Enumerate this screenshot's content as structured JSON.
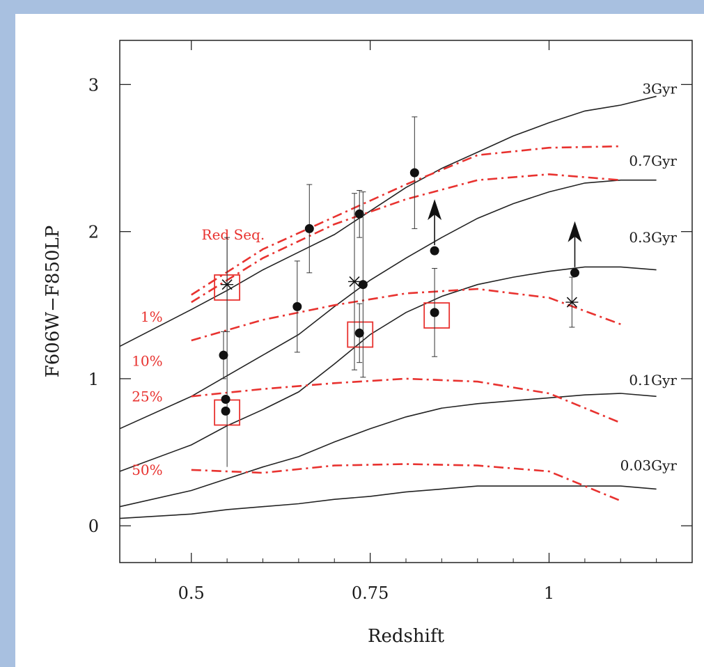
{
  "chart_data": {
    "type": "line",
    "title": "",
    "xlabel": "Redshift",
    "ylabel": "F606W−F850LP",
    "xlim": [
      0.4,
      1.2
    ],
    "ylim": [
      -0.25,
      3.3
    ],
    "xticks": [
      0.5,
      0.75,
      1
    ],
    "xtick_labels": [
      "0.5",
      "0.75",
      "1"
    ],
    "yticks": [
      0,
      1,
      2,
      3
    ],
    "ytick_labels": [
      "0",
      "1",
      "2",
      "3"
    ],
    "grid": false,
    "model_curves": [
      {
        "label": "3Gyr",
        "color": "#222222",
        "x": [
          0.4,
          0.5,
          0.55,
          0.6,
          0.65,
          0.7,
          0.75,
          0.8,
          0.85,
          0.9,
          0.95,
          1.0,
          1.05,
          1.1,
          1.15
        ],
        "y": [
          1.22,
          1.47,
          1.6,
          1.74,
          1.86,
          1.98,
          2.14,
          2.3,
          2.43,
          2.54,
          2.65,
          2.74,
          2.82,
          2.86,
          2.92
        ]
      },
      {
        "label": "0.7Gyr",
        "color": "#222222",
        "x": [
          0.4,
          0.5,
          0.55,
          0.6,
          0.65,
          0.7,
          0.75,
          0.8,
          0.85,
          0.9,
          0.95,
          1.0,
          1.05,
          1.1,
          1.15
        ],
        "y": [
          0.66,
          0.88,
          1.02,
          1.16,
          1.3,
          1.49,
          1.67,
          1.82,
          1.96,
          2.09,
          2.19,
          2.27,
          2.33,
          2.35,
          2.35
        ]
      },
      {
        "label": "0.3Gyr",
        "color": "#222222",
        "x": [
          0.4,
          0.5,
          0.55,
          0.6,
          0.65,
          0.7,
          0.75,
          0.8,
          0.85,
          0.9,
          0.95,
          1.0,
          1.05,
          1.1,
          1.15
        ],
        "y": [
          0.37,
          0.55,
          0.68,
          0.79,
          0.91,
          1.1,
          1.3,
          1.45,
          1.56,
          1.64,
          1.69,
          1.73,
          1.76,
          1.76,
          1.74
        ]
      },
      {
        "label": "0.1Gyr",
        "color": "#222222",
        "x": [
          0.4,
          0.5,
          0.55,
          0.6,
          0.65,
          0.7,
          0.75,
          0.8,
          0.85,
          0.9,
          0.95,
          1.0,
          1.05,
          1.1,
          1.15
        ],
        "y": [
          0.13,
          0.24,
          0.32,
          0.4,
          0.47,
          0.57,
          0.66,
          0.74,
          0.8,
          0.83,
          0.85,
          0.87,
          0.89,
          0.9,
          0.88
        ]
      },
      {
        "label": "0.03Gyr",
        "color": "#222222",
        "x": [
          0.4,
          0.5,
          0.55,
          0.6,
          0.65,
          0.7,
          0.75,
          0.8,
          0.85,
          0.9,
          0.95,
          1.0,
          1.05,
          1.1,
          1.15
        ],
        "y": [
          0.05,
          0.08,
          0.11,
          0.13,
          0.15,
          0.18,
          0.2,
          0.23,
          0.25,
          0.27,
          0.27,
          0.27,
          0.27,
          0.27,
          0.25
        ]
      }
    ],
    "red_curves": [
      {
        "label": "Red Seq.",
        "color": "#e8322f",
        "dash": "dashdot",
        "x": [
          0.5,
          0.6,
          0.7,
          0.8,
          0.9,
          1.0,
          1.1
        ],
        "y": [
          1.57,
          1.88,
          2.1,
          2.32,
          2.52,
          2.57,
          2.58
        ]
      },
      {
        "label": "",
        "color": "#e8322f",
        "dash": "dashdot",
        "x": [
          0.5,
          0.6,
          0.7,
          0.8,
          0.9,
          1.0,
          1.1
        ],
        "y": [
          1.52,
          1.82,
          2.05,
          2.22,
          2.35,
          2.39,
          2.35
        ]
      },
      {
        "label": "1%",
        "color": "#e8322f",
        "dash": "dashdot",
        "x": [
          0.5,
          0.6,
          0.7,
          0.8,
          0.9,
          1.0,
          1.1
        ],
        "y": [
          1.26,
          1.4,
          1.5,
          1.58,
          1.61,
          1.55,
          1.37
        ]
      },
      {
        "label": "10%",
        "color": "#e8322f",
        "dash": "dashdot",
        "x": [
          0.5,
          0.6,
          0.7,
          0.8,
          0.9,
          1.0,
          1.1
        ],
        "y": [
          0.88,
          0.93,
          0.97,
          1.0,
          0.98,
          0.9,
          0.7
        ]
      },
      {
        "label": "50%",
        "color": "#e8322f",
        "dash": "dashdot",
        "x": [
          0.5,
          0.6,
          0.7,
          0.8,
          0.9,
          1.0,
          1.1
        ],
        "y": [
          0.38,
          0.36,
          0.41,
          0.42,
          0.41,
          0.37,
          0.17
        ]
      }
    ],
    "extra_labels": [
      "25%"
    ],
    "points": [
      {
        "x": 0.545,
        "y": 1.16,
        "err": 0.16
      },
      {
        "x": 0.548,
        "y": 0.86,
        "err": 0.0
      },
      {
        "x": 0.548,
        "y": 0.78,
        "err": 0.0
      },
      {
        "x": 0.648,
        "y": 1.49,
        "err": 0.31
      },
      {
        "x": 0.665,
        "y": 2.02,
        "err": 0.3
      },
      {
        "x": 0.735,
        "y": 2.12,
        "err": 0.16
      },
      {
        "x": 0.74,
        "y": 1.64,
        "err": 0.63
      },
      {
        "x": 0.735,
        "y": 1.31,
        "err": 0.2
      },
      {
        "x": 0.812,
        "y": 2.4,
        "err": 0.38
      },
      {
        "x": 0.84,
        "y": 1.87,
        "err": 0.0
      },
      {
        "x": 0.84,
        "y": 1.45,
        "err": 0.3
      },
      {
        "x": 1.036,
        "y": 1.72,
        "err": 0.0
      }
    ],
    "cross_points": [
      {
        "x": 0.55,
        "y": 1.64,
        "err": 0.32,
        "err_low": 1.24
      },
      {
        "x": 0.728,
        "y": 1.66,
        "err": 0.6
      },
      {
        "x": 1.032,
        "y": 1.52,
        "err": 0.17
      }
    ],
    "boxes": [
      {
        "x": 0.55,
        "y": 1.62
      },
      {
        "x": 0.55,
        "y": 0.77
      },
      {
        "x": 0.736,
        "y": 1.3
      },
      {
        "x": 0.843,
        "y": 1.43
      }
    ],
    "lower_limits": [
      {
        "x": 0.84,
        "y": 1.87
      },
      {
        "x": 1.036,
        "y": 1.72
      }
    ]
  }
}
